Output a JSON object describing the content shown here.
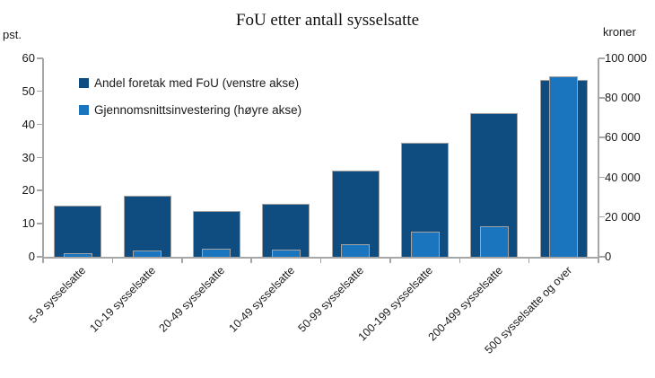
{
  "chart_data": {
    "type": "bar",
    "title": "FoU etter antall sysselsatte",
    "left_axis": {
      "label": "pst.",
      "min": 0,
      "max": 60,
      "ticks": [
        0,
        10,
        20,
        30,
        40,
        50,
        60
      ],
      "tick_labels": [
        "0",
        "10",
        "20",
        "30",
        "40",
        "50",
        "60"
      ]
    },
    "right_axis": {
      "label": "kroner",
      "min": 0,
      "max": 100000,
      "ticks": [
        0,
        20000,
        40000,
        60000,
        80000,
        100000
      ],
      "tick_labels": [
        "0",
        "20 000",
        "40 000",
        "60 000",
        "80 000",
        "100 000"
      ]
    },
    "categories": [
      "5-9 sysselsatte",
      "10-19 sysselsatte",
      "20-49 sysselsatte",
      "10-49 sysselsatte",
      "50-99 sysselsatte",
      "100-199 sysselsatte",
      "200-499 sysselsatte",
      "500 sysselsatte og over"
    ],
    "series": [
      {
        "name": "Andel foretak med FoU (venstre akse)",
        "axis": "left",
        "color": "#0f4c80",
        "values": [
          15.4,
          18.5,
          13.9,
          16.1,
          26.0,
          34.6,
          43.4,
          53.6
        ]
      },
      {
        "name": "Gjennomsnittsinvestering (høyre akse)",
        "axis": "right",
        "color": "#1b74be",
        "values": [
          1800,
          3000,
          4200,
          3500,
          6500,
          12500,
          15500,
          91000
        ]
      }
    ],
    "grid": false,
    "legend_position": "inside-top-left",
    "colors": {
      "axis": "#a6a6a6",
      "bar_outline": "#a3a3a3",
      "text": "#1a1a1a",
      "background": "#ffffff"
    }
  }
}
